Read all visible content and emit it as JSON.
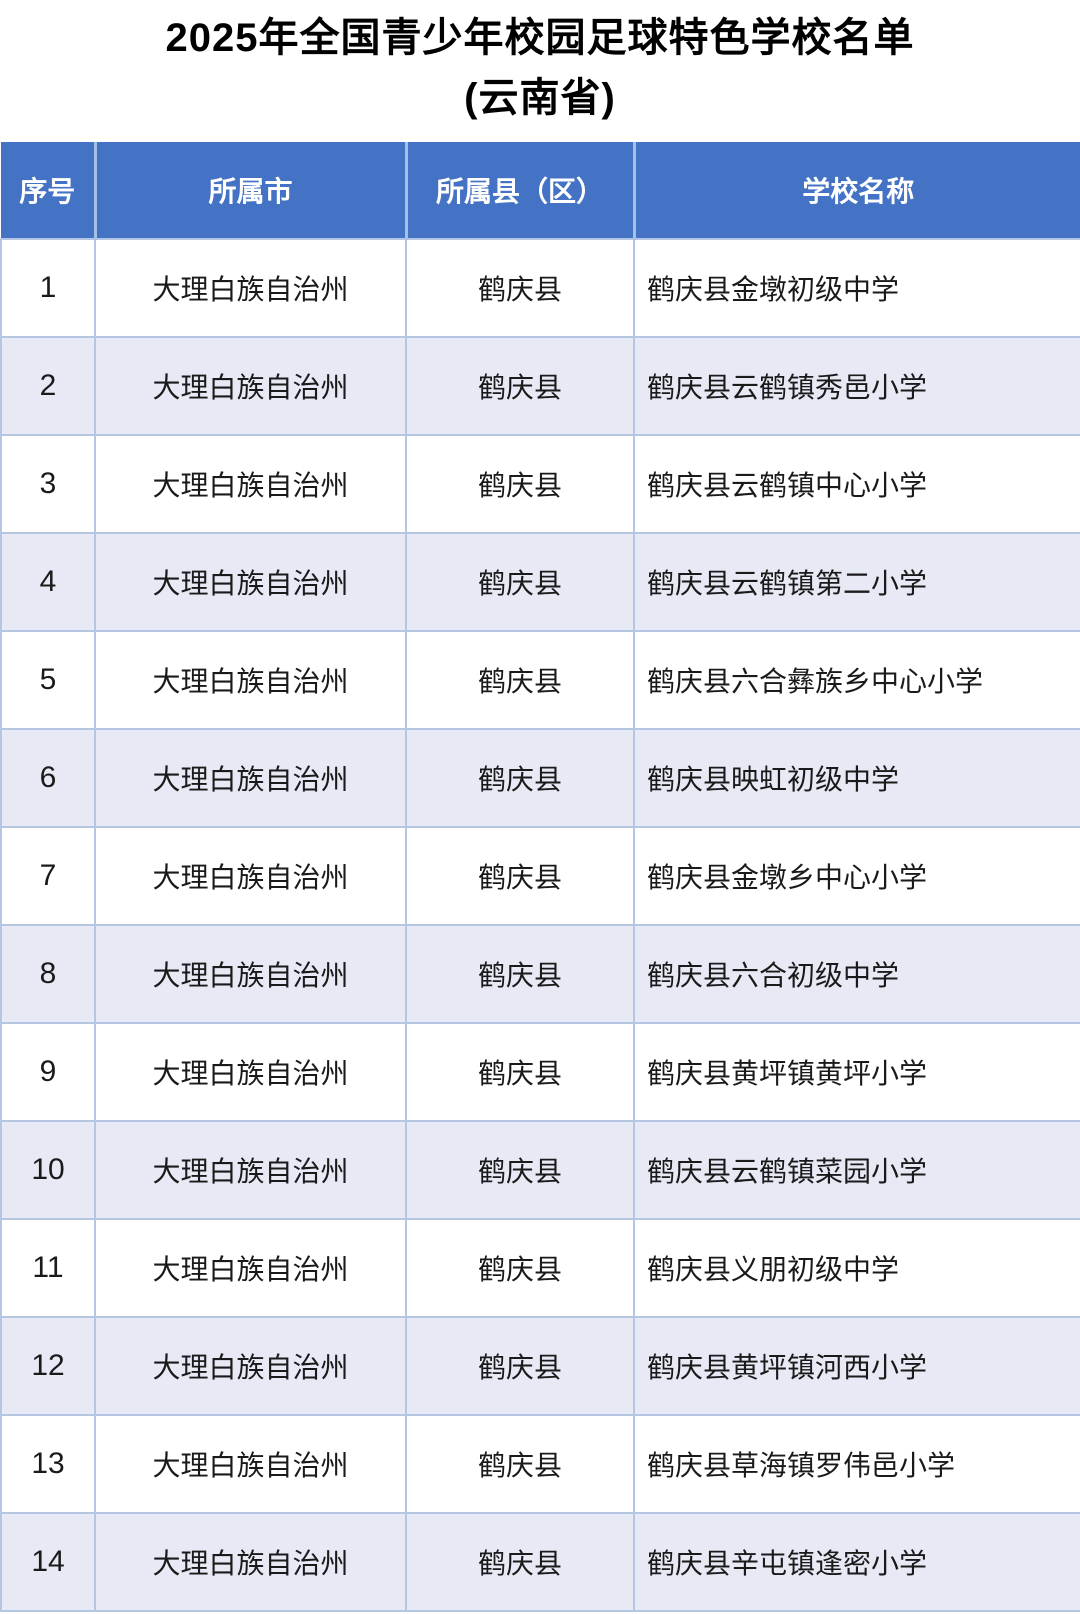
{
  "page": {
    "title_line1": "2025年全国青少年校园足球特色学校名单",
    "title_line2": "(云南省)"
  },
  "table": {
    "columns": [
      "序号",
      "所属市",
      "所属县（区）",
      "学校名称"
    ],
    "rows": [
      {
        "no": "1",
        "city": "大理白族自治州",
        "county": "鹤庆县",
        "school": "鹤庆县金墩初级中学"
      },
      {
        "no": "2",
        "city": "大理白族自治州",
        "county": "鹤庆县",
        "school": "鹤庆县云鹤镇秀邑小学"
      },
      {
        "no": "3",
        "city": "大理白族自治州",
        "county": "鹤庆县",
        "school": "鹤庆县云鹤镇中心小学"
      },
      {
        "no": "4",
        "city": "大理白族自治州",
        "county": "鹤庆县",
        "school": "鹤庆县云鹤镇第二小学"
      },
      {
        "no": "5",
        "city": "大理白族自治州",
        "county": "鹤庆县",
        "school": "鹤庆县六合彝族乡中心小学"
      },
      {
        "no": "6",
        "city": "大理白族自治州",
        "county": "鹤庆县",
        "school": "鹤庆县映虹初级中学"
      },
      {
        "no": "7",
        "city": "大理白族自治州",
        "county": "鹤庆县",
        "school": "鹤庆县金墩乡中心小学"
      },
      {
        "no": "8",
        "city": "大理白族自治州",
        "county": "鹤庆县",
        "school": "鹤庆县六合初级中学"
      },
      {
        "no": "9",
        "city": "大理白族自治州",
        "county": "鹤庆县",
        "school": "鹤庆县黄坪镇黄坪小学"
      },
      {
        "no": "10",
        "city": "大理白族自治州",
        "county": "鹤庆县",
        "school": "鹤庆县云鹤镇菜园小学"
      },
      {
        "no": "11",
        "city": "大理白族自治州",
        "county": "鹤庆县",
        "school": "鹤庆县义朋初级中学"
      },
      {
        "no": "12",
        "city": "大理白族自治州",
        "county": "鹤庆县",
        "school": "鹤庆县黄坪镇河西小学"
      },
      {
        "no": "13",
        "city": "大理白族自治州",
        "county": "鹤庆县",
        "school": "鹤庆县草海镇罗伟邑小学"
      },
      {
        "no": "14",
        "city": "大理白族自治州",
        "county": "鹤庆县",
        "school": "鹤庆县辛屯镇逢密小学"
      }
    ]
  },
  "colors": {
    "header_bg": "#4472C4",
    "header_text": "#FFFFFF",
    "row_alt_bg": "#E7EAF5",
    "grid_border": "#B4C6E4",
    "header_divider": "#A6BFE4",
    "title_text": "#000000",
    "body_text": "#1A1A1A"
  }
}
